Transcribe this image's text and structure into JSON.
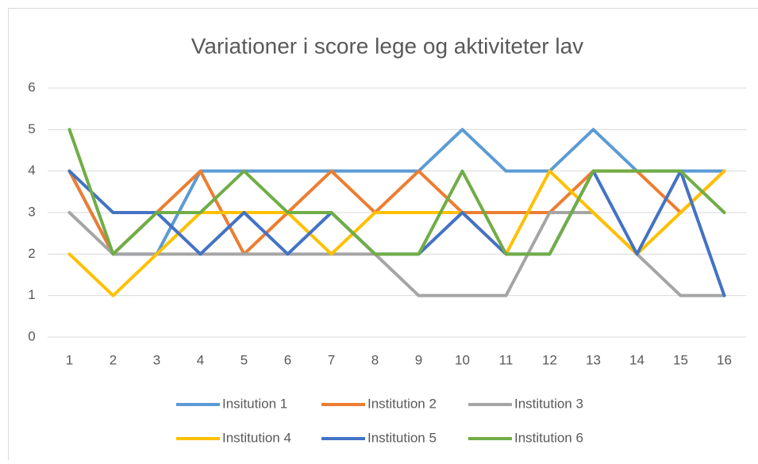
{
  "chart_data": {
    "type": "line",
    "title": "Variationer i score lege og aktiviteter lav",
    "categories": [
      "1",
      "2",
      "3",
      "4",
      "5",
      "6",
      "7",
      "8",
      "9",
      "10",
      "11",
      "12",
      "13",
      "14",
      "15",
      "16"
    ],
    "ylim": [
      0,
      6
    ],
    "yticks": [
      0,
      1,
      2,
      3,
      4,
      5,
      6
    ],
    "grid": true,
    "legend": "bottom",
    "series": [
      {
        "name": "Insitution 1",
        "color": "#5b9bd5",
        "values": [
          4,
          2,
          2,
          4,
          4,
          4,
          4,
          4,
          4,
          5,
          4,
          4,
          5,
          4,
          4,
          4
        ]
      },
      {
        "name": "Institution 2",
        "color": "#ed7d31",
        "values": [
          4,
          2,
          3,
          4,
          2,
          3,
          4,
          3,
          4,
          3,
          3,
          3,
          4,
          4,
          3,
          4
        ]
      },
      {
        "name": "Institution 3",
        "color": "#a5a5a5",
        "values": [
          3,
          2,
          2,
          2,
          2,
          2,
          2,
          2,
          1,
          1,
          1,
          3,
          3,
          2,
          1,
          1
        ]
      },
      {
        "name": "Institution 4",
        "color": "#ffc000",
        "values": [
          2,
          1,
          2,
          3,
          3,
          3,
          2,
          3,
          3,
          3,
          2,
          4,
          3,
          2,
          3,
          4
        ]
      },
      {
        "name": "Institution 5",
        "color": "#4472c4",
        "values": [
          4,
          3,
          3,
          2,
          3,
          2,
          3,
          2,
          2,
          3,
          2,
          2,
          4,
          2,
          4,
          1
        ]
      },
      {
        "name": "Institution 6",
        "color": "#70ad47",
        "values": [
          5,
          2,
          3,
          3,
          4,
          3,
          3,
          2,
          2,
          4,
          2,
          2,
          4,
          4,
          4,
          3
        ]
      }
    ]
  }
}
